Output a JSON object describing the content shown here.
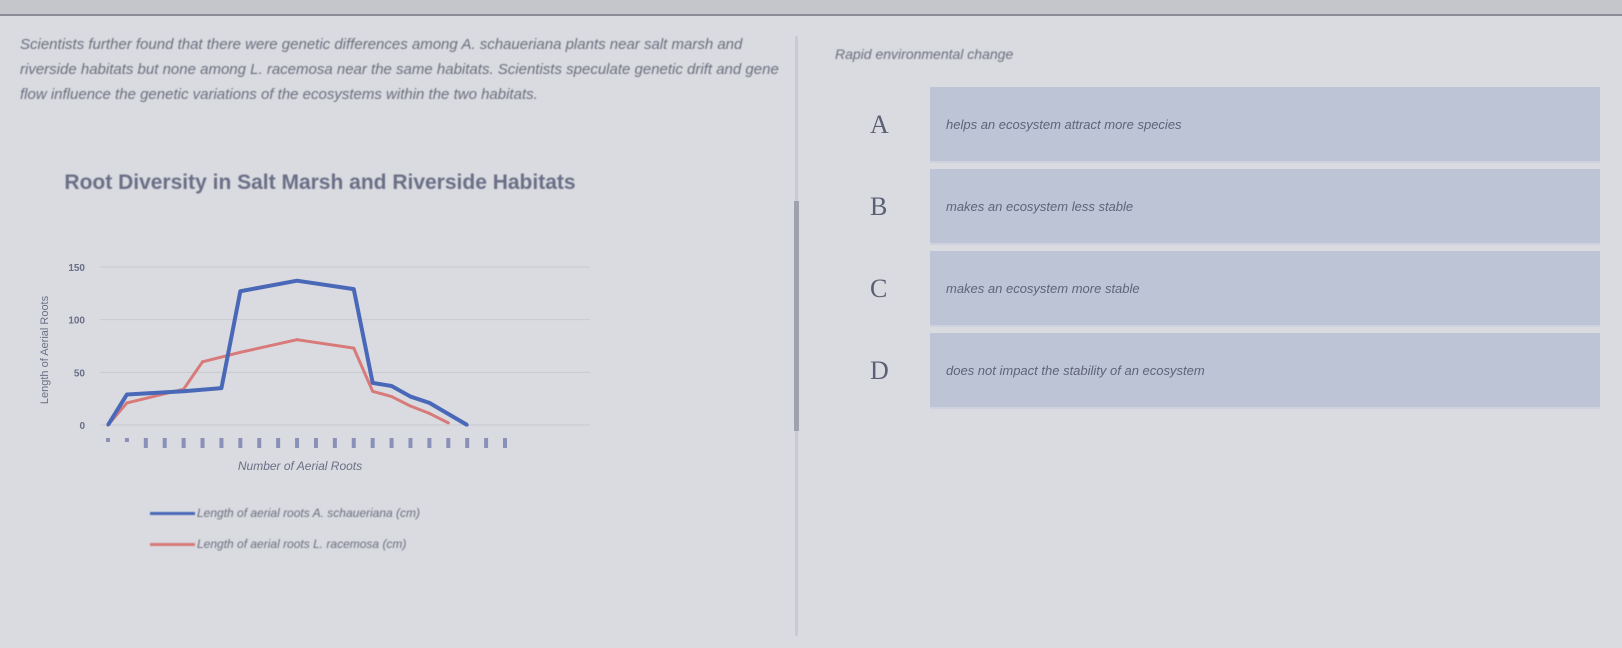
{
  "passage": "Scientists further found that there were genetic differences among A. schaueriana plants near salt marsh and riverside habitats but none among L. racemosa near the same habitats. Scientists speculate genetic drift and gene flow influence the genetic variations of the ecosystems within the two habitats.",
  "question": {
    "heading": "Rapid environmental change",
    "options": [
      {
        "letter": "A",
        "text": "helps an ecosystem attract more species"
      },
      {
        "letter": "B",
        "text": "makes an ecosystem less stable"
      },
      {
        "letter": "C",
        "text": "makes an ecosystem more stable"
      },
      {
        "letter": "D",
        "text": "does not impact the stability of an ecosystem"
      }
    ]
  },
  "chart_data": {
    "type": "line",
    "title": "Root Diversity in Salt Marsh and Riverside Habitats",
    "xlabel": "Number of Aerial Roots",
    "ylabel": "Length of Aerial Roots",
    "ylim": [
      0,
      150
    ],
    "yticks": [
      "0",
      "50",
      "100",
      "150"
    ],
    "x_tick_count": 22,
    "grid": true,
    "legend_position": "bottom",
    "series": [
      {
        "name": "Length of aerial roots A. schaueriana (cm)",
        "color": "#4a68b8",
        "points": [
          [
            0,
            0
          ],
          [
            1,
            29
          ],
          [
            4,
            32
          ],
          [
            6,
            35
          ],
          [
            7,
            127
          ],
          [
            10,
            137
          ],
          [
            13,
            129
          ],
          [
            14,
            40
          ],
          [
            15,
            37
          ],
          [
            16,
            27
          ],
          [
            17,
            21
          ],
          [
            19,
            0
          ]
        ]
      },
      {
        "name": "Length of aerial roots L. racemosa (cm)",
        "color": "#d97a7a",
        "points": [
          [
            0,
            0
          ],
          [
            1,
            21
          ],
          [
            4,
            34
          ],
          [
            5,
            60
          ],
          [
            7,
            69
          ],
          [
            10,
            81
          ],
          [
            13,
            73
          ],
          [
            14,
            32
          ],
          [
            15,
            27
          ],
          [
            16,
            18
          ],
          [
            17,
            11
          ],
          [
            18,
            2
          ]
        ]
      }
    ]
  }
}
